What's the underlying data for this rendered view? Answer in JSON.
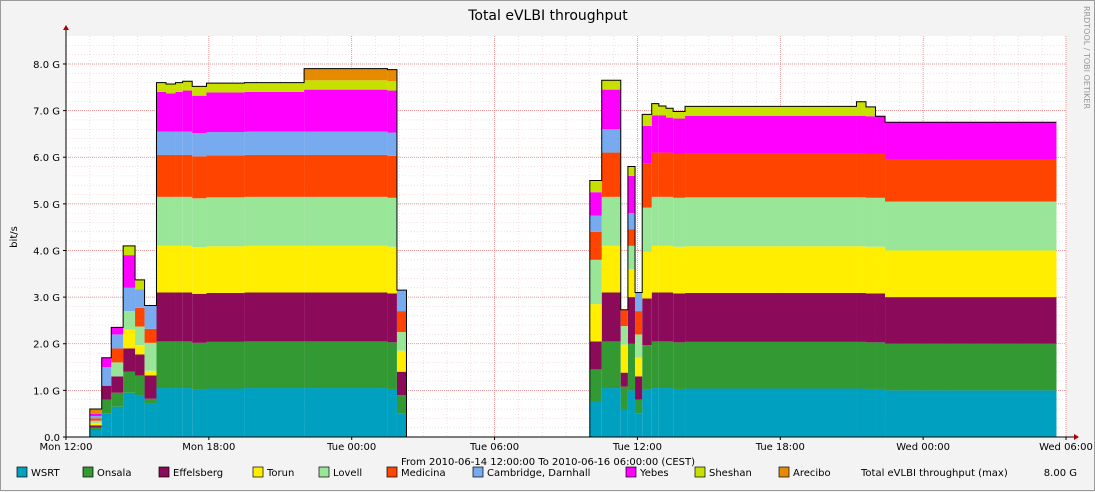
{
  "chart_data": {
    "type": "area",
    "stacked": true,
    "title": "Total eVLBI throughput",
    "ylabel": "bit/s",
    "ylim": [
      0,
      8.6
    ],
    "y_unit": "Gbit/s",
    "yticks": [
      "0.0",
      "1.0 G",
      "2.0 G",
      "3.0 G",
      "4.0 G",
      "5.0 G",
      "6.0 G",
      "7.0 G",
      "8.0 G"
    ],
    "xticks": [
      "Mon 12:00",
      "Mon 18:00",
      "Tue 00:00",
      "Tue 06:00",
      "Tue 12:00",
      "Tue 18:00",
      "Wed 00:00",
      "Wed 06:00"
    ],
    "xrange_hours": [
      0,
      42
    ],
    "x_axis_caption": "From 2010-06-14 12:00:00 To 2010-06-16 06:00:00 (CEST)",
    "watermark": "RRDTOOL / TOBI OETIKER",
    "background": "#ffffff",
    "grid": true,
    "legend_position": "bottom",
    "x": [
      0,
      1,
      1.5,
      1.9,
      2.4,
      2.9,
      3.3,
      3.8,
      4.2,
      4.6,
      4.9,
      5.3,
      5.9,
      7.5,
      10.0,
      13.5,
      13.9,
      14.3,
      21.5,
      22.0,
      22.5,
      23.3,
      23.6,
      23.9,
      24.2,
      24.6,
      24.9,
      25.2,
      25.5,
      26.0,
      33.2,
      33.6,
      34.0,
      34.4,
      41.6
    ],
    "series": [
      {
        "name": "WSRT",
        "color": "#00a0c0",
        "values": [
          0,
          0.15,
          0.5,
          0.65,
          0.95,
          0.9,
          0.72,
          1.05,
          1.05,
          1.05,
          1.05,
          1.02,
          1.04,
          1.05,
          1.05,
          1.03,
          0.5,
          0,
          0,
          0.75,
          1.05,
          0.58,
          1.0,
          0.5,
          1.02,
          1.05,
          1.05,
          1.05,
          1.03,
          1.04,
          1.04,
          1.03,
          1.03,
          1.0,
          1.0
        ]
      },
      {
        "name": "Onsala",
        "color": "#339933",
        "values": [
          0,
          0.05,
          0.3,
          0.3,
          0.45,
          0.42,
          0.1,
          1.0,
          1.0,
          1.0,
          1.0,
          1.0,
          1.0,
          1.0,
          1.0,
          1.0,
          0.4,
          0,
          0,
          0.7,
          1.0,
          0.5,
          1.0,
          0.3,
          0.95,
          1.0,
          1.0,
          1.0,
          1.0,
          1.0,
          1.0,
          1.0,
          1.0,
          1.0,
          1.0
        ]
      },
      {
        "name": "Effelsberg",
        "color": "#8c0a5a",
        "values": [
          0,
          0.05,
          0.3,
          0.35,
          0.5,
          0.45,
          0.5,
          1.05,
          1.05,
          1.05,
          1.05,
          1.05,
          1.05,
          1.05,
          1.05,
          1.05,
          0.5,
          0,
          0,
          0.6,
          1.05,
          0.3,
          1.0,
          0.5,
          1.0,
          1.05,
          1.05,
          1.05,
          1.05,
          1.05,
          1.05,
          1.05,
          1.05,
          1.0,
          1.0
        ]
      },
      {
        "name": "Torun",
        "color": "#ffee00",
        "values": [
          0,
          0.05,
          0.0,
          0.0,
          0.4,
          0.2,
          0.1,
          1.0,
          1.0,
          1.0,
          1.0,
          1.0,
          1.0,
          1.0,
          1.0,
          1.0,
          0.45,
          0,
          0,
          0.8,
          1.0,
          0.6,
          0.6,
          0.4,
          1.0,
          1.0,
          1.0,
          1.0,
          1.0,
          1.0,
          1.0,
          1.0,
          1.0,
          1.0,
          1.0
        ]
      },
      {
        "name": "Lovell",
        "color": "#99e699",
        "values": [
          0,
          0.05,
          0.0,
          0.3,
          0.4,
          0.4,
          0.6,
          1.05,
          1.05,
          1.05,
          1.05,
          1.05,
          1.05,
          1.05,
          1.05,
          1.05,
          0.4,
          0,
          0,
          0.95,
          1.05,
          0.4,
          0.5,
          0.5,
          0.95,
          1.05,
          1.05,
          1.05,
          1.05,
          1.05,
          1.05,
          1.05,
          1.05,
          1.05,
          1.05
        ]
      },
      {
        "name": "Medicina",
        "color": "#ff4400",
        "values": [
          0,
          0.05,
          0.0,
          0.3,
          0.0,
          0.4,
          0.3,
          0.9,
          0.9,
          0.9,
          0.9,
          0.9,
          0.9,
          0.9,
          0.9,
          0.9,
          0.45,
          0,
          0,
          0.6,
          0.95,
          0.35,
          0.35,
          0.5,
          0.95,
          0.95,
          0.95,
          0.95,
          0.95,
          0.95,
          0.95,
          0.95,
          0.95,
          0.9,
          0.9
        ]
      },
      {
        "name": "Cambridge, Darnhall",
        "color": "#77aaee",
        "values": [
          0,
          0.05,
          0.4,
          0.3,
          0.5,
          0.4,
          0.5,
          0.5,
          0.5,
          0.5,
          0.5,
          0.5,
          0.5,
          0.5,
          0.5,
          0.5,
          0.45,
          0,
          0,
          0.35,
          0.5,
          0.0,
          0.35,
          0.4,
          0.0,
          0.0,
          0.0,
          0.0,
          0.0,
          0.0,
          0.0,
          0.0,
          0.0,
          0.0,
          0.0
        ]
      },
      {
        "name": "Yebes",
        "color": "#ff00ff",
        "values": [
          0,
          0.05,
          0.2,
          0.15,
          0.7,
          0.0,
          0.0,
          0.85,
          0.82,
          0.85,
          0.88,
          0.8,
          0.85,
          0.85,
          0.9,
          0.9,
          0.0,
          0,
          0,
          0.5,
          0.85,
          0.0,
          0.8,
          0.0,
          0.8,
          0.8,
          0.8,
          0.75,
          0.75,
          0.8,
          0.8,
          0.8,
          0.8,
          0.8,
          0.8
        ]
      },
      {
        "name": "Sheshan",
        "color": "#c8e000",
        "values": [
          0,
          0.0,
          0.0,
          0.0,
          0.2,
          0.2,
          0.0,
          0.2,
          0.2,
          0.2,
          0.2,
          0.2,
          0.2,
          0.2,
          0.2,
          0.2,
          0.0,
          0,
          0,
          0.25,
          0.2,
          0.0,
          0.2,
          0.0,
          0.25,
          0.25,
          0.2,
          0.2,
          0.15,
          0.2,
          0.3,
          0.2,
          0.0,
          0.0,
          0.0
        ]
      },
      {
        "name": "Arecibo",
        "color": "#e68a00",
        "values": [
          0,
          0.1,
          0.0,
          0.0,
          0.0,
          0.0,
          0.0,
          0.0,
          0.0,
          0.0,
          0.0,
          0.0,
          0.0,
          0.0,
          0.25,
          0.25,
          0.0,
          0,
          0,
          0.0,
          0.0,
          0.0,
          0.0,
          0.0,
          0.0,
          0.0,
          0.0,
          0.0,
          0.0,
          0.0,
          0.0,
          0.0,
          0.0,
          0.0,
          0.0
        ]
      }
    ],
    "total_label": "Total eVLBI throughput (max)",
    "total_max": "8.00 G"
  }
}
